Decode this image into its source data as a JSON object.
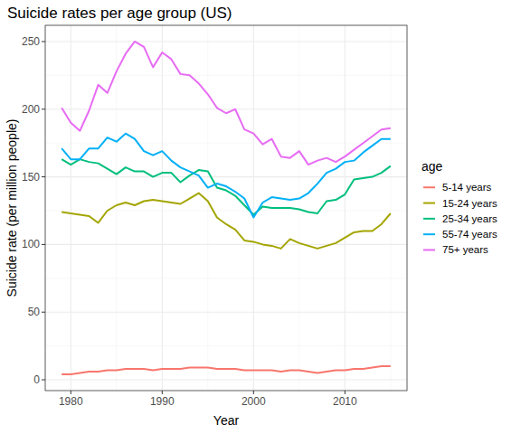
{
  "chart_data": {
    "type": "line",
    "title": "Suicide rates per age group (US)",
    "x_label": "Year",
    "y_label": "Suicide rate (per million people)",
    "legend_title": "age",
    "legend": "right",
    "grid": true,
    "x": [
      1979,
      1980,
      1981,
      1982,
      1983,
      1984,
      1985,
      1986,
      1987,
      1988,
      1989,
      1990,
      1991,
      1992,
      1993,
      1994,
      1995,
      1996,
      1997,
      1998,
      1999,
      2000,
      2001,
      2002,
      2003,
      2004,
      2005,
      2006,
      2007,
      2008,
      2009,
      2010,
      2011,
      2012,
      2013,
      2014,
      2015
    ],
    "xlim": [
      1977.2,
      2016.8
    ],
    "xticks": [
      1980,
      1990,
      2000,
      2010
    ],
    "ylim": [
      -8,
      262
    ],
    "yticks": [
      0,
      50,
      100,
      150,
      200,
      250
    ],
    "series": [
      {
        "name": "5-14 years",
        "color": "#F8766D",
        "values": [
          4,
          4,
          5,
          6,
          6,
          7,
          7,
          8,
          8,
          8,
          7,
          8,
          8,
          8,
          9,
          9,
          9,
          8,
          8,
          8,
          7,
          7,
          7,
          7,
          6,
          7,
          7,
          6,
          5,
          6,
          7,
          7,
          8,
          8,
          9,
          10,
          10
        ]
      },
      {
        "name": "15-24 years",
        "color": "#A3A500",
        "values": [
          124,
          123,
          122,
          121,
          116,
          125,
          129,
          131,
          129,
          132,
          133,
          132,
          131,
          130,
          134,
          138,
          132,
          120,
          115,
          111,
          103,
          102,
          100,
          99,
          97,
          104,
          101,
          99,
          97,
          99,
          101,
          105,
          109,
          110,
          110,
          115,
          123
        ]
      },
      {
        "name": "25-34 years",
        "color": "#00BF7D",
        "values": [
          163,
          159,
          163,
          161,
          160,
          156,
          152,
          157,
          154,
          154,
          150,
          153,
          153,
          146,
          151,
          155,
          154,
          142,
          140,
          136,
          129,
          122,
          128,
          127,
          127,
          127,
          126,
          124,
          123,
          132,
          133,
          137,
          148,
          149,
          150,
          153,
          158
        ]
      },
      {
        "name": "55-74 years",
        "color": "#00B0F6",
        "values": [
          171,
          163,
          163,
          171,
          171,
          179,
          176,
          182,
          178,
          169,
          166,
          169,
          162,
          157,
          154,
          151,
          142,
          145,
          143,
          139,
          134,
          120,
          131,
          135,
          134,
          133,
          134,
          138,
          145,
          153,
          156,
          161,
          162,
          168,
          173,
          178,
          178
        ]
      },
      {
        "name": "75+ years",
        "color": "#E76BF3",
        "values": [
          201,
          190,
          184,
          199,
          218,
          212,
          228,
          241,
          250,
          246,
          231,
          242,
          237,
          226,
          225,
          219,
          211,
          201,
          197,
          200,
          185,
          182,
          174,
          178,
          165,
          164,
          169,
          159,
          162,
          164,
          161,
          165,
          170,
          175,
          180,
          185,
          186
        ]
      }
    ]
  }
}
